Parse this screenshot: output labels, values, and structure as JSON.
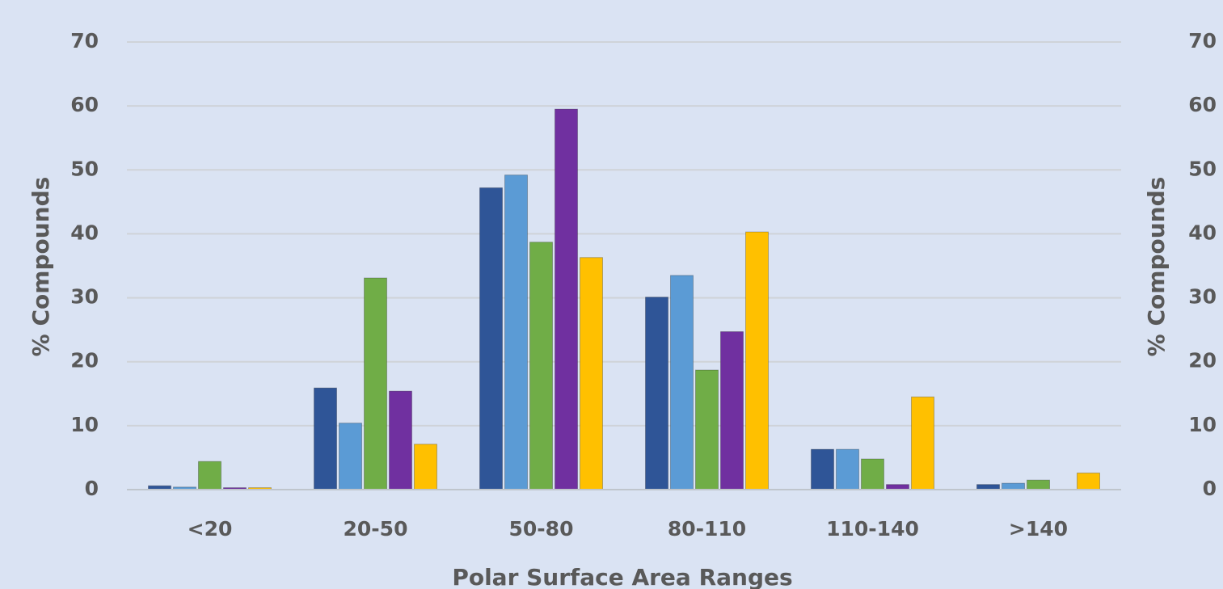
{
  "chart_data": {
    "type": "bar",
    "x_label": "Polar Surface Area Ranges",
    "y_label": "% Compounds",
    "y2_label": "% Compounds",
    "categories": [
      "<20",
      "20-50",
      "50-80",
      "80-110",
      "110-140",
      ">140"
    ],
    "series": [
      {
        "color": "#2f5597",
        "values": [
          0.6,
          15.9,
          47.2,
          30.1,
          6.3,
          0.8
        ]
      },
      {
        "color": "#5b9bd5",
        "values": [
          0.4,
          10.4,
          49.2,
          33.5,
          6.3,
          1.0
        ]
      },
      {
        "color": "#70ad47",
        "values": [
          4.4,
          33.1,
          38.7,
          18.7,
          4.8,
          1.5
        ]
      },
      {
        "color": "#7030a0",
        "values": [
          0.3,
          15.4,
          59.5,
          24.7,
          0.8,
          0
        ]
      },
      {
        "color": "#ffc000",
        "values": [
          0.3,
          7.1,
          36.3,
          40.3,
          14.5,
          2.6
        ]
      }
    ],
    "ylim": [
      0,
      70
    ],
    "yticks": [
      0,
      10,
      20,
      30,
      40,
      50,
      60,
      70
    ],
    "y2lim": [
      0,
      70
    ],
    "y2ticks": [
      0,
      10,
      20,
      30,
      40,
      50,
      60,
      70
    ],
    "grid": true
  }
}
